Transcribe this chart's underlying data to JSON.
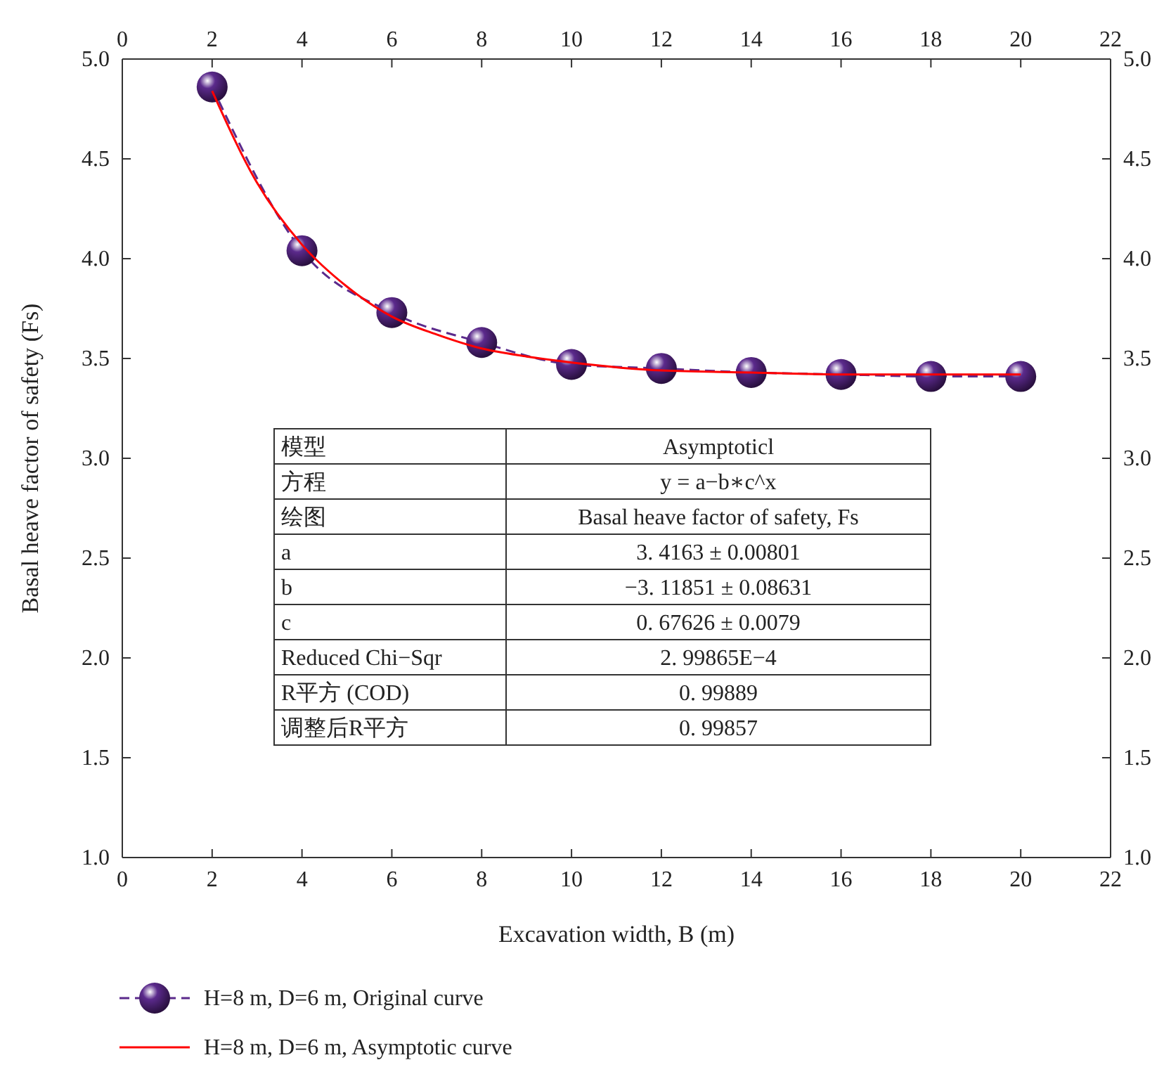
{
  "chart_data": {
    "type": "line",
    "xlabel": "Excavation width, B (m)",
    "ylabel": "Basal heave factor of safety (Fs)",
    "xlim": [
      0,
      22
    ],
    "xticks": [
      0,
      2,
      4,
      6,
      8,
      10,
      12,
      14,
      16,
      18,
      20,
      22
    ],
    "x2lim": [
      0,
      22
    ],
    "x2ticks": [
      0,
      2,
      4,
      6,
      8,
      10,
      12,
      14,
      16,
      18,
      20,
      22
    ],
    "ylim": [
      1,
      5
    ],
    "yticks": [
      {
        "value": 1,
        "label": "1.0"
      },
      {
        "value": 1.5,
        "label": "1.5"
      },
      {
        "value": 2,
        "label": "2.0"
      },
      {
        "value": 2.5,
        "label": "2.5"
      },
      {
        "value": 3,
        "label": "3.0"
      },
      {
        "value": 3.5,
        "label": "3.5"
      },
      {
        "value": 4,
        "label": "4.0"
      },
      {
        "value": 4.5,
        "label": "4.5"
      },
      {
        "value": 5,
        "label": "5.0"
      }
    ],
    "y2lim": [
      1,
      5
    ],
    "y2ticks": [
      {
        "value": 1,
        "label": "1.0"
      },
      {
        "value": 1.5,
        "label": "1.5"
      },
      {
        "value": 2,
        "label": "2.0"
      },
      {
        "value": 2.5,
        "label": "2.5"
      },
      {
        "value": 3,
        "label": "3.0"
      },
      {
        "value": 3.5,
        "label": "3.5"
      },
      {
        "value": 4,
        "label": "4.0"
      },
      {
        "value": 4.5,
        "label": "4.5"
      },
      {
        "value": 5,
        "label": "5.0"
      }
    ],
    "grid": false,
    "legend": "bottom left",
    "series": [
      {
        "name": "H=8 m, D=6 m, Original curve",
        "color": "#5b2a8c",
        "marker": "circle",
        "line_style": "dashed",
        "x": [
          2,
          4,
          6,
          8,
          10,
          12,
          14,
          16,
          18,
          20
        ],
        "values": [
          4.86,
          4.04,
          3.73,
          3.58,
          3.47,
          3.45,
          3.43,
          3.42,
          3.41,
          3.41
        ]
      },
      {
        "name": "H=8 m, D=6 m, Asymptotic curve",
        "color": "#ff0000",
        "marker": "none",
        "line_style": "solid",
        "x": [
          2,
          3,
          4,
          5,
          6,
          7,
          8,
          9,
          10,
          12,
          14,
          16,
          20
        ],
        "values": [
          4.84,
          4.38,
          4.07,
          3.86,
          3.71,
          3.62,
          3.55,
          3.51,
          3.48,
          3.44,
          3.43,
          3.42,
          3.42
        ]
      }
    ],
    "annotations": [
      "模型",
      "Asymptoticl",
      "方程",
      "y = a−b∗c^x",
      "绘图",
      "Basal heave factor of safety, Fs",
      "a",
      "3. 4163 ± 0.00801",
      "b",
      "−3. 11851 ± 0.08631",
      "c",
      "0. 67626 ± 0.0079",
      "Reduced Chi−Sqr",
      "2. 99865E−4",
      "R平方 (COD)",
      "0. 99889",
      "调整后R平方",
      "0. 99857"
    ]
  }
}
